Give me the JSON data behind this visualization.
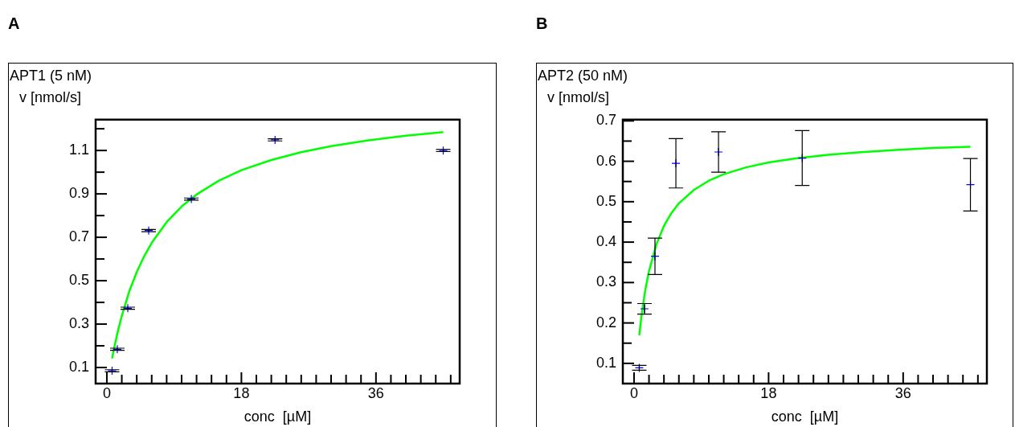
{
  "chart_data": [
    {
      "type": "scatter",
      "title": "APT1  (5  nM)",
      "ylabel": "v  [nmol/s]",
      "xlabel": "conc  [µM]",
      "annotations": [
        "A"
      ],
      "x": [
        0.7,
        1.4,
        2.8,
        5.6,
        11.3,
        22.5,
        45
      ],
      "series": [
        {
          "type": "scatter",
          "color": "#0000ff",
          "marker": "cross",
          "values": [
            0.085,
            0.184,
            0.373,
            0.731,
            0.876,
            1.149,
            1.1
          ],
          "errors": [
            0.005,
            0.005,
            0.005,
            0.005,
            0.005,
            0.005,
            0.005
          ]
        },
        {
          "type": "line",
          "color": "#00ff00",
          "marker": "none",
          "x": [
            0.7,
            1,
            1.5,
            2,
            3,
            4,
            5,
            6,
            8,
            10,
            12,
            15,
            18,
            22,
            26,
            30,
            35,
            40,
            45
          ],
          "values": [
            0.142,
            0.194,
            0.271,
            0.338,
            0.451,
            0.54,
            0.613,
            0.674,
            0.77,
            0.842,
            0.897,
            0.961,
            1.009,
            1.056,
            1.092,
            1.12,
            1.147,
            1.168,
            1.185
          ]
        }
      ],
      "xlim": [
        -1.5,
        47.2
      ],
      "ylim": [
        0.026,
        1.242
      ],
      "xticks": [
        0,
        {
          "value": 2,
          "label": null
        },
        {
          "value": 4,
          "label": null
        },
        {
          "value": 6,
          "label": null
        },
        {
          "value": 8,
          "label": null
        },
        {
          "value": 10,
          "label": null
        },
        {
          "value": 12,
          "label": null
        },
        {
          "value": 14,
          "label": null
        },
        {
          "value": 16,
          "label": null
        },
        18,
        {
          "value": 20,
          "label": null
        },
        {
          "value": 22,
          "label": null
        },
        {
          "value": 24,
          "label": null
        },
        {
          "value": 26,
          "label": null
        },
        {
          "value": 28,
          "label": null
        },
        {
          "value": 30,
          "label": null
        },
        {
          "value": 32,
          "label": null
        },
        {
          "value": 34,
          "label": null
        },
        36,
        {
          "value": 38,
          "label": null
        },
        {
          "value": 40,
          "label": null
        },
        {
          "value": 42,
          "label": null
        },
        {
          "value": 44,
          "label": null
        },
        {
          "value": 46,
          "label": null
        }
      ],
      "yticks": [
        0.1,
        {
          "value": 0.2,
          "label": null
        },
        0.3,
        {
          "value": 0.4,
          "label": null
        },
        0.5,
        {
          "value": 0.6,
          "label": null
        },
        0.7,
        {
          "value": 0.8,
          "label": null
        },
        0.9,
        {
          "value": 1.0,
          "label": null
        },
        1.1,
        {
          "value": 1.2,
          "label": null
        }
      ],
      "grid": false,
      "legend": false
    },
    {
      "type": "scatter",
      "title": "APT2  (50  nM)",
      "ylabel": "v  [nmol/s]",
      "xlabel": "conc  [µM]",
      "annotations": [
        "B"
      ],
      "x": [
        0.7,
        1.4,
        2.8,
        5.6,
        11.3,
        22.5,
        45
      ],
      "series": [
        {
          "type": "scatter",
          "color": "#0000ff",
          "marker": "cross",
          "values": [
            0.089,
            0.235,
            0.365,
            0.595,
            0.623,
            0.608,
            0.542
          ],
          "errors": [
            0.006,
            0.013,
            0.045,
            0.061,
            0.05,
            0.068,
            0.065
          ]
        },
        {
          "type": "line",
          "color": "#00ff00",
          "marker": "none",
          "x": [
            0.7,
            1,
            1.5,
            2,
            3,
            4,
            5,
            6,
            8,
            10,
            12,
            15,
            18,
            22,
            26,
            30,
            35,
            40,
            45
          ],
          "values": [
            0.169,
            0.218,
            0.281,
            0.328,
            0.395,
            0.44,
            0.472,
            0.496,
            0.529,
            0.552,
            0.568,
            0.585,
            0.597,
            0.608,
            0.616,
            0.622,
            0.628,
            0.633,
            0.636
          ]
        }
      ],
      "xlim": [
        -1.5,
        47.2
      ],
      "ylim": [
        0.05,
        0.703
      ],
      "xticks": [
        0,
        {
          "value": 2,
          "label": null
        },
        {
          "value": 4,
          "label": null
        },
        {
          "value": 6,
          "label": null
        },
        {
          "value": 8,
          "label": null
        },
        {
          "value": 10,
          "label": null
        },
        {
          "value": 12,
          "label": null
        },
        {
          "value": 14,
          "label": null
        },
        {
          "value": 16,
          "label": null
        },
        18,
        {
          "value": 20,
          "label": null
        },
        {
          "value": 22,
          "label": null
        },
        {
          "value": 24,
          "label": null
        },
        {
          "value": 26,
          "label": null
        },
        {
          "value": 28,
          "label": null
        },
        {
          "value": 30,
          "label": null
        },
        {
          "value": 32,
          "label": null
        },
        {
          "value": 34,
          "label": null
        },
        36,
        {
          "value": 38,
          "label": null
        },
        {
          "value": 40,
          "label": null
        },
        {
          "value": 42,
          "label": null
        },
        {
          "value": 44,
          "label": null
        },
        {
          "value": 46,
          "label": null
        }
      ],
      "yticks": [
        0.1,
        {
          "value": 0.15,
          "label": null
        },
        0.2,
        {
          "value": 0.25,
          "label": null
        },
        0.3,
        {
          "value": 0.35,
          "label": null
        },
        0.4,
        {
          "value": 0.45,
          "label": null
        },
        0.5,
        {
          "value": 0.55,
          "label": null
        },
        0.6,
        {
          "value": 0.65,
          "label": null
        },
        0.7
      ],
      "grid": false,
      "legend": false
    }
  ]
}
